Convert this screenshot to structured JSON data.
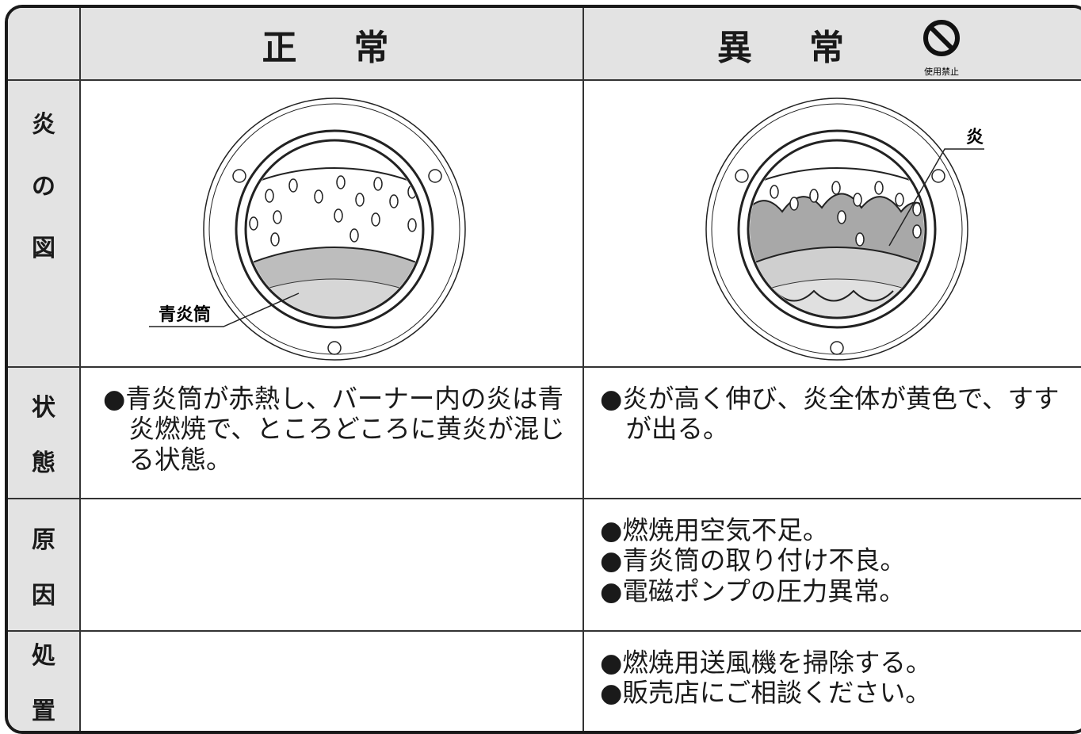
{
  "header": {
    "normal": "正　常",
    "abnormal": "異　常",
    "prohibited_icon_label": "使用禁止"
  },
  "figure_labels": {
    "normal": "青炎筒",
    "abnormal": "炎"
  },
  "rows": [
    {
      "label": [
        "炎",
        "の",
        "図"
      ]
    },
    {
      "label": [
        "状",
        "態"
      ],
      "normal": [
        "●青炎筒が赤熱し、バーナー内の炎は青炎燃焼で、ところどころに黄炎が混じる状態。"
      ],
      "abnormal": [
        "●炎が高く伸び、炎全体が黄色で、すすが出る。"
      ]
    },
    {
      "label": [
        "原",
        "因"
      ],
      "abnormal": [
        "●燃焼用空気不足。",
        "●青炎筒の取り付け不良。",
        "●電磁ポンプの圧力異常。"
      ]
    },
    {
      "label": [
        "処",
        "置"
      ],
      "abnormal": [
        "●燃焼用送風機を掃除する。",
        "●販売店にご相談ください。"
      ]
    }
  ]
}
